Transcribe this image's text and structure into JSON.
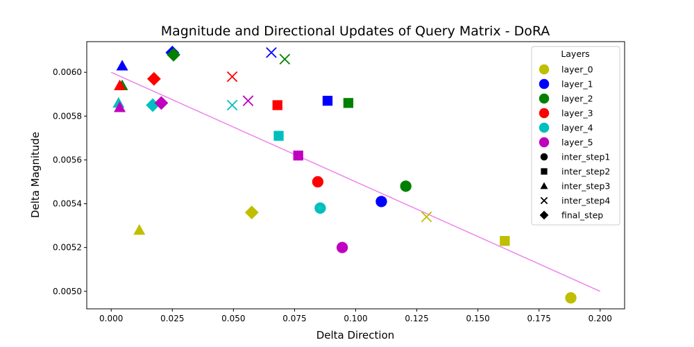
{
  "chart_data": {
    "type": "scatter",
    "title": "Magnitude and Directional Updates of Query Matrix - DoRA",
    "xlabel": "Delta Direction",
    "ylabel": "Delta Magnitude",
    "xlim": [
      -0.01,
      0.21
    ],
    "ylim": [
      0.00492,
      0.00614
    ],
    "x_ticks": [
      0.0,
      0.025,
      0.05,
      0.075,
      0.1,
      0.125,
      0.15,
      0.175,
      0.2
    ],
    "x_tick_labels": [
      "0.000",
      "0.025",
      "0.050",
      "0.075",
      "0.100",
      "0.125",
      "0.150",
      "0.175",
      "0.200"
    ],
    "y_ticks": [
      0.005,
      0.0052,
      0.0054,
      0.0056,
      0.0058,
      0.006
    ],
    "y_tick_labels": [
      "0.0050",
      "0.0052",
      "0.0054",
      "0.0056",
      "0.0058",
      "0.0060"
    ],
    "grid": false,
    "legend_placement": "top-right",
    "legend": {
      "title": "Layers",
      "layers": [
        {
          "label": "layer_0",
          "color": "#bfbf00"
        },
        {
          "label": "layer_1",
          "color": "#0000ff"
        },
        {
          "label": "layer_2",
          "color": "#008000"
        },
        {
          "label": "layer_3",
          "color": "#ff0000"
        },
        {
          "label": "layer_4",
          "color": "#00bfbf"
        },
        {
          "label": "layer_5",
          "color": "#bf00bf"
        }
      ],
      "steps": [
        {
          "label": "inter_step1",
          "marker": "circle"
        },
        {
          "label": "inter_step2",
          "marker": "square"
        },
        {
          "label": "inter_step3",
          "marker": "triangle"
        },
        {
          "label": "inter_step4",
          "marker": "x"
        },
        {
          "label": "final_step",
          "marker": "diamond"
        }
      ]
    },
    "trend_line": {
      "x": [
        0.0,
        0.2
      ],
      "y": [
        0.006,
        0.005
      ],
      "color": "#ee82ee"
    },
    "series": [
      {
        "name": "layer_0",
        "color": "#bfbf00",
        "points": [
          {
            "step": "inter_step1",
            "x": 0.188,
            "y": 0.00497
          },
          {
            "step": "inter_step2",
            "x": 0.161,
            "y": 0.00523
          },
          {
            "step": "inter_step3",
            "x": 0.0115,
            "y": 0.00528
          },
          {
            "step": "inter_step4",
            "x": 0.129,
            "y": 0.00534
          },
          {
            "step": "final_step",
            "x": 0.0575,
            "y": 0.00536
          }
        ]
      },
      {
        "name": "layer_1",
        "color": "#0000ff",
        "points": [
          {
            "step": "inter_step1",
            "x": 0.1105,
            "y": 0.00541
          },
          {
            "step": "inter_step2",
            "x": 0.0885,
            "y": 0.00587
          },
          {
            "step": "inter_step3",
            "x": 0.0045,
            "y": 0.00603
          },
          {
            "step": "inter_step4",
            "x": 0.0655,
            "y": 0.00609
          },
          {
            "step": "final_step",
            "x": 0.025,
            "y": 0.00609
          }
        ]
      },
      {
        "name": "layer_2",
        "color": "#008000",
        "points": [
          {
            "step": "inter_step1",
            "x": 0.1205,
            "y": 0.00548
          },
          {
            "step": "inter_step2",
            "x": 0.097,
            "y": 0.00586
          },
          {
            "step": "inter_step3",
            "x": 0.0045,
            "y": 0.00594
          },
          {
            "step": "inter_step4",
            "x": 0.071,
            "y": 0.00606
          },
          {
            "step": "final_step",
            "x": 0.0255,
            "y": 0.00608
          }
        ]
      },
      {
        "name": "layer_3",
        "color": "#ff0000",
        "points": [
          {
            "step": "inter_step1",
            "x": 0.0845,
            "y": 0.0055
          },
          {
            "step": "inter_step2",
            "x": 0.068,
            "y": 0.00585
          },
          {
            "step": "inter_step3",
            "x": 0.0035,
            "y": 0.00594
          },
          {
            "step": "inter_step4",
            "x": 0.0495,
            "y": 0.00598
          },
          {
            "step": "final_step",
            "x": 0.0175,
            "y": 0.00597
          }
        ]
      },
      {
        "name": "layer_4",
        "color": "#00bfbf",
        "points": [
          {
            "step": "inter_step1",
            "x": 0.0855,
            "y": 0.00538
          },
          {
            "step": "inter_step2",
            "x": 0.0685,
            "y": 0.00571
          },
          {
            "step": "inter_step3",
            "x": 0.003,
            "y": 0.00586
          },
          {
            "step": "inter_step4",
            "x": 0.0495,
            "y": 0.00585
          },
          {
            "step": "final_step",
            "x": 0.017,
            "y": 0.00585
          }
        ]
      },
      {
        "name": "layer_5",
        "color": "#bf00bf",
        "points": [
          {
            "step": "inter_step1",
            "x": 0.0945,
            "y": 0.0052
          },
          {
            "step": "inter_step2",
            "x": 0.0765,
            "y": 0.00562
          },
          {
            "step": "inter_step3",
            "x": 0.0035,
            "y": 0.00584
          },
          {
            "step": "inter_step4",
            "x": 0.056,
            "y": 0.00587
          },
          {
            "step": "final_step",
            "x": 0.0205,
            "y": 0.00586
          }
        ]
      }
    ]
  }
}
